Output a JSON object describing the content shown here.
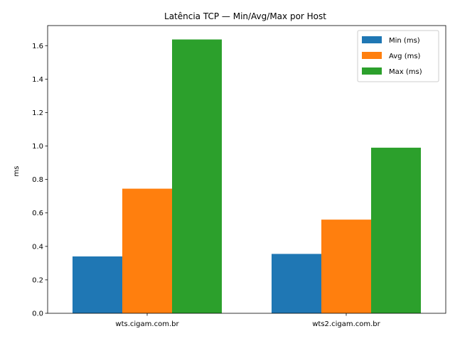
{
  "chart_data": {
    "type": "bar",
    "title": "Latência TCP — Min/Avg/Max por Host",
    "xlabel": "",
    "ylabel": "ms",
    "categories": [
      "wts.cigam.com.br",
      "wts2.cigam.com.br"
    ],
    "series": [
      {
        "name": "Min (ms)",
        "color": "#1f77b4",
        "values": [
          0.34,
          0.355
        ]
      },
      {
        "name": "Avg (ms)",
        "color": "#ff7f0e",
        "values": [
          0.745,
          0.56
        ]
      },
      {
        "name": "Max (ms)",
        "color": "#2ca02c",
        "values": [
          1.637,
          0.99
        ]
      }
    ],
    "ylim": [
      0,
      1.72
    ],
    "yticks": [
      "0.0",
      "0.2",
      "0.4",
      "0.6",
      "0.8",
      "1.0",
      "1.2",
      "1.4",
      "1.6"
    ],
    "legend_position": "top-right",
    "grid": false
  }
}
